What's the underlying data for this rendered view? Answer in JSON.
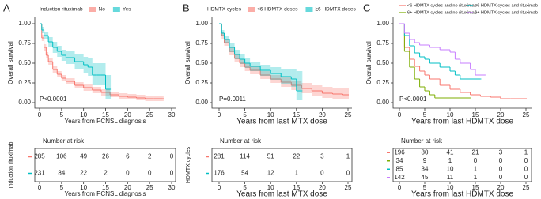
{
  "chart_data": [
    {
      "type": "step",
      "panel": "A",
      "legend_title": "Induction rituximab",
      "xlabel": "Years from PCNSL diagnosis",
      "ylabel": "Overall survival",
      "annotation": "P<0.0001",
      "xlim": [
        0,
        30
      ],
      "xticks": [
        0,
        5,
        10,
        15,
        20,
        25,
        30
      ],
      "ylim": [
        0,
        1
      ],
      "yticks": [
        {
          "value": 0,
          "label": "0.00"
        },
        {
          "value": 0.25,
          "label": "0.25"
        },
        {
          "value": 0.5,
          "label": "0.50"
        },
        {
          "value": 0.75,
          "label": "0.75"
        },
        {
          "value": 1,
          "label": "1.00"
        }
      ],
      "series": [
        {
          "name": "No",
          "color": "#F8766D",
          "x": [
            0,
            0.5,
            1,
            1.5,
            2,
            3,
            4,
            5,
            6,
            8,
            10,
            12,
            14,
            16,
            18,
            20,
            22,
            24,
            26,
            28
          ],
          "values": [
            1,
            0.82,
            0.7,
            0.6,
            0.52,
            0.42,
            0.36,
            0.31,
            0.27,
            0.22,
            0.19,
            0.16,
            0.13,
            0.1,
            0.08,
            0.07,
            0.06,
            0.05,
            0.05,
            0.05
          ],
          "lower": [
            1,
            0.78,
            0.66,
            0.56,
            0.48,
            0.38,
            0.32,
            0.27,
            0.23,
            0.18,
            0.15,
            0.12,
            0.09,
            0.07,
            0.05,
            0.04,
            0.03,
            0.02,
            0.02,
            0.02
          ],
          "upper": [
            1,
            0.86,
            0.74,
            0.64,
            0.56,
            0.46,
            0.4,
            0.35,
            0.31,
            0.26,
            0.23,
            0.2,
            0.17,
            0.14,
            0.12,
            0.11,
            0.1,
            0.09,
            0.09,
            0.09
          ]
        },
        {
          "name": "Yes",
          "color": "#00BFC4",
          "x": [
            0,
            0.5,
            1,
            2,
            3,
            4,
            5,
            6,
            8,
            10,
            11,
            12,
            13,
            14,
            15,
            16
          ],
          "values": [
            1,
            0.92,
            0.85,
            0.77,
            0.7,
            0.65,
            0.6,
            0.57,
            0.52,
            0.48,
            0.45,
            0.35,
            0.35,
            0.35,
            0.17,
            0.17
          ],
          "lower": [
            1,
            0.88,
            0.8,
            0.71,
            0.63,
            0.58,
            0.53,
            0.49,
            0.43,
            0.38,
            0.34,
            0.22,
            0.22,
            0.22,
            0.05,
            0.05
          ],
          "upper": [
            1,
            0.96,
            0.9,
            0.83,
            0.77,
            0.72,
            0.67,
            0.65,
            0.61,
            0.58,
            0.56,
            0.5,
            0.5,
            0.5,
            0.35,
            0.35
          ]
        }
      ],
      "risk_table": {
        "title": "Number at risk",
        "ylabel": "Induction rituximab",
        "rows": [
          [
            285,
            106,
            49,
            26,
            6,
            2,
            0
          ],
          [
            231,
            84,
            22,
            2,
            0,
            0,
            0
          ]
        ]
      }
    },
    {
      "type": "step",
      "panel": "B",
      "legend_title": "HDMTX cycles",
      "xlabel": "Years from last MTX dose",
      "ylabel": "Overall survival",
      "annotation": "P=0.0011",
      "xlim": [
        0,
        25
      ],
      "xticks": [
        0,
        5,
        10,
        15,
        20,
        25
      ],
      "ylim": [
        0,
        1
      ],
      "yticks": [
        {
          "value": 0,
          "label": "0.00"
        },
        {
          "value": 0.25,
          "label": "0.25"
        },
        {
          "value": 0.5,
          "label": "0.50"
        },
        {
          "value": 0.75,
          "label": "0.75"
        },
        {
          "value": 1,
          "label": "1.00"
        }
      ],
      "series": [
        {
          "name": "<6 HDMTX doses",
          "color": "#F8766D",
          "x": [
            0,
            0.5,
            1,
            2,
            3,
            4,
            5,
            6,
            8,
            10,
            12,
            14,
            16,
            18,
            20,
            22,
            24,
            25
          ],
          "values": [
            1,
            0.85,
            0.76,
            0.65,
            0.56,
            0.5,
            0.45,
            0.41,
            0.35,
            0.3,
            0.26,
            0.22,
            0.18,
            0.15,
            0.12,
            0.11,
            0.1,
            0.1
          ],
          "lower": [
            1,
            0.81,
            0.72,
            0.6,
            0.51,
            0.45,
            0.4,
            0.36,
            0.3,
            0.25,
            0.2,
            0.16,
            0.12,
            0.09,
            0.06,
            0.05,
            0.04,
            0.04
          ],
          "upper": [
            1,
            0.89,
            0.8,
            0.7,
            0.61,
            0.55,
            0.5,
            0.46,
            0.4,
            0.35,
            0.32,
            0.28,
            0.25,
            0.22,
            0.2,
            0.19,
            0.18,
            0.18
          ]
        },
        {
          "name": "≥6 HDMTX doses",
          "color": "#00BFC4",
          "x": [
            0,
            0.5,
            1,
            2,
            3,
            4,
            5,
            6,
            8,
            10,
            12,
            14,
            15,
            16
          ],
          "values": [
            1,
            0.88,
            0.8,
            0.7,
            0.61,
            0.55,
            0.5,
            0.46,
            0.41,
            0.37,
            0.33,
            0.3,
            0.15,
            0.15
          ],
          "lower": [
            1,
            0.84,
            0.75,
            0.64,
            0.55,
            0.49,
            0.44,
            0.4,
            0.34,
            0.29,
            0.24,
            0.2,
            0.03,
            0.03
          ],
          "upper": [
            1,
            0.92,
            0.85,
            0.76,
            0.67,
            0.61,
            0.56,
            0.52,
            0.48,
            0.45,
            0.43,
            0.42,
            0.4,
            0.4
          ]
        }
      ],
      "risk_table": {
        "title": "Number at risk",
        "ylabel": "HDMTX cycles",
        "rows": [
          [
            281,
            114,
            51,
            22,
            3,
            1
          ],
          [
            176,
            54,
            12,
            1,
            0,
            0
          ]
        ]
      }
    },
    {
      "type": "step",
      "panel": "C",
      "xlabel": "Years from last HDMTX dose",
      "ylabel": "Overall survival",
      "annotation": "P<0.0001",
      "xlim": [
        0,
        25
      ],
      "xticks": [
        0,
        5,
        10,
        15,
        20,
        25
      ],
      "ylim": [
        0,
        1
      ],
      "yticks": [
        {
          "value": 0,
          "label": "0.00"
        },
        {
          "value": 0.25,
          "label": "0.25"
        },
        {
          "value": 0.5,
          "label": "0.50"
        },
        {
          "value": 0.75,
          "label": "0.75"
        },
        {
          "value": 1,
          "label": "1.00"
        }
      ],
      "series": [
        {
          "name": "<6 HDMTX cycles and no rituximab",
          "color": "#F8766D",
          "x": [
            0,
            1,
            2,
            3,
            4,
            5,
            6,
            8,
            10,
            12,
            14,
            16,
            18,
            20,
            22,
            25
          ],
          "values": [
            1,
            0.7,
            0.55,
            0.46,
            0.4,
            0.35,
            0.3,
            0.22,
            0.17,
            0.13,
            0.1,
            0.08,
            0.07,
            0.05,
            0.05,
            0.05
          ]
        },
        {
          "name": "6+ HDMTX cycles and no rituximab",
          "color": "#7CAE00",
          "x": [
            0,
            1,
            2,
            3,
            4,
            5,
            6,
            7,
            10,
            14
          ],
          "values": [
            1,
            0.65,
            0.45,
            0.3,
            0.2,
            0.15,
            0.1,
            0.06,
            0.06,
            0.06
          ]
        },
        {
          "name": "<6 HDMTX cycles and rituximab",
          "color": "#00BFC4",
          "x": [
            0,
            1,
            2,
            3,
            4,
            5,
            6,
            8,
            10,
            11,
            12,
            16
          ],
          "values": [
            1,
            0.85,
            0.72,
            0.63,
            0.58,
            0.55,
            0.5,
            0.45,
            0.4,
            0.35,
            0.3,
            0.3
          ]
        },
        {
          "name": "6+ HDMTX cycles and rituximab",
          "color": "#C77CFF",
          "x": [
            0,
            1,
            2,
            3,
            4,
            6,
            8,
            10,
            11,
            12,
            14,
            15,
            17
          ],
          "values": [
            1,
            0.88,
            0.8,
            0.76,
            0.73,
            0.7,
            0.67,
            0.64,
            0.55,
            0.5,
            0.42,
            0.35,
            0.35
          ]
        }
      ],
      "risk_table": {
        "title": "Number at risk",
        "rows": [
          [
            196,
            80,
            41,
            21,
            3,
            1
          ],
          [
            34,
            9,
            1,
            0,
            0,
            0
          ],
          [
            85,
            34,
            10,
            1,
            0,
            0
          ],
          [
            142,
            45,
            11,
            1,
            0,
            0
          ]
        ]
      }
    }
  ]
}
